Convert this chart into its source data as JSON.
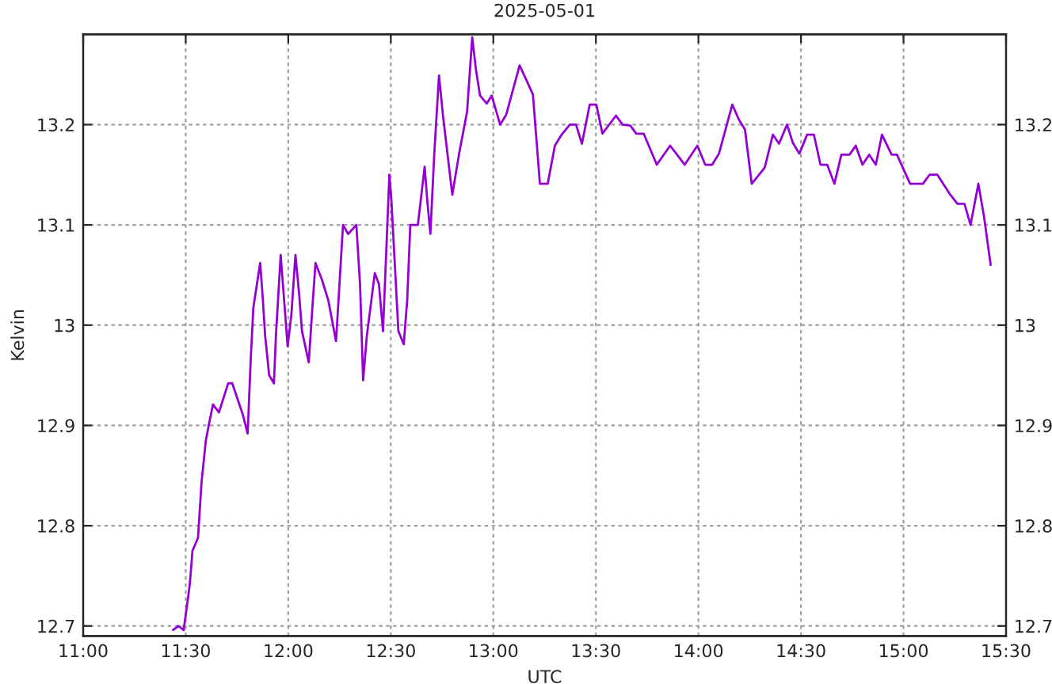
{
  "chart_data": {
    "type": "line",
    "title": "2025-05-01",
    "xlabel": "UTC",
    "ylabel": "Kelvin",
    "x": [
      11.438,
      11.465,
      11.49,
      11.508,
      11.52,
      11.533,
      11.56,
      11.577,
      11.598,
      11.615,
      11.633,
      11.662,
      11.707,
      11.727,
      11.778,
      11.802,
      11.817,
      11.83,
      11.863,
      11.875,
      11.887,
      11.907,
      11.93,
      11.94,
      11.963,
      11.997,
      12.015,
      12.035,
      12.053,
      12.067,
      12.1,
      12.12,
      12.133,
      12.163,
      12.195,
      12.233,
      12.267,
      12.292,
      12.332,
      12.35,
      12.365,
      12.383,
      12.422,
      12.442,
      12.462,
      12.493,
      12.503,
      12.518,
      12.537,
      12.563,
      12.58,
      12.595,
      12.632,
      12.665,
      12.678,
      12.693,
      12.712,
      12.735,
      12.755,
      12.8,
      12.833,
      12.872,
      12.897,
      12.915,
      12.935,
      12.968,
      12.992,
      13.033,
      13.063,
      13.128,
      13.162,
      13.193,
      13.227,
      13.265,
      13.3,
      13.333,
      13.373,
      13.403,
      13.432,
      13.47,
      13.502,
      13.532,
      13.598,
      13.63,
      13.668,
      13.697,
      13.733,
      13.797,
      13.862,
      13.892,
      13.933,
      13.995,
      14.033,
      14.067,
      14.1,
      14.165,
      14.197,
      14.227,
      14.26,
      14.323,
      14.363,
      14.393,
      14.432,
      14.46,
      14.492,
      14.53,
      14.563,
      14.595,
      14.628,
      14.663,
      14.697,
      14.737,
      14.767,
      14.8,
      14.833,
      14.865,
      14.895,
      14.942,
      14.968,
      15.032,
      15.095,
      15.127,
      15.165,
      15.225,
      15.263,
      15.297,
      15.327,
      15.365,
      15.392,
      15.425
    ],
    "series": [
      {
        "color": "#9400d3",
        "values": [
          12.696,
          12.7,
          12.696,
          12.723,
          12.742,
          12.775,
          12.788,
          12.843,
          12.885,
          12.903,
          12.921,
          12.913,
          12.942,
          12.942,
          12.911,
          12.892,
          12.966,
          13.018,
          13.062,
          13.029,
          12.99,
          12.95,
          12.942,
          12.99,
          13.07,
          12.979,
          13.01,
          13.07,
          13.031,
          12.994,
          12.963,
          13.025,
          13.062,
          13.046,
          13.025,
          12.984,
          13.1,
          13.091,
          13.1,
          13.041,
          12.945,
          12.989,
          13.052,
          13.041,
          12.994,
          13.15,
          13.124,
          13.067,
          12.994,
          12.981,
          13.025,
          13.1,
          13.1,
          13.158,
          13.124,
          13.091,
          13.171,
          13.249,
          13.208,
          13.13,
          13.171,
          13.213,
          13.287,
          13.255,
          13.229,
          13.221,
          13.229,
          13.2,
          13.21,
          13.259,
          13.244,
          13.23,
          13.141,
          13.141,
          13.179,
          13.19,
          13.2,
          13.2,
          13.181,
          13.22,
          13.22,
          13.191,
          13.209,
          13.2,
          13.199,
          13.191,
          13.191,
          13.16,
          13.179,
          13.171,
          13.16,
          13.179,
          13.16,
          13.16,
          13.171,
          13.22,
          13.205,
          13.195,
          13.141,
          13.157,
          13.19,
          13.181,
          13.2,
          13.182,
          13.171,
          13.19,
          13.19,
          13.16,
          13.16,
          13.141,
          13.17,
          13.17,
          13.179,
          13.16,
          13.17,
          13.16,
          13.19,
          13.17,
          13.17,
          13.141,
          13.141,
          13.15,
          13.15,
          13.131,
          13.121,
          13.121,
          13.1,
          13.141,
          13.109,
          13.06
        ]
      }
    ],
    "xlim": [
      11,
      15.5
    ],
    "xticks": [
      {
        "value": 11,
        "label": "11:00"
      },
      {
        "value": 11.5,
        "label": "11:30"
      },
      {
        "value": 12,
        "label": "12:00"
      },
      {
        "value": 12.5,
        "label": "12:30"
      },
      {
        "value": 13,
        "label": "13:00"
      },
      {
        "value": 13.5,
        "label": "13:30"
      },
      {
        "value": 14,
        "label": "14:00"
      },
      {
        "value": 14.5,
        "label": "14:30"
      },
      {
        "value": 15,
        "label": "15:00"
      },
      {
        "value": 15.5,
        "label": "15:30"
      }
    ],
    "ylim": [
      12.69,
      13.29
    ],
    "yticks": [
      12.7,
      12.8,
      12.9,
      13,
      13.1,
      13.2
    ],
    "y2lim": [
      12.69,
      13.29
    ],
    "y2ticks": [
      12.7,
      12.8,
      12.9,
      13,
      13.1,
      13.2
    ],
    "grid": true,
    "marker": "none",
    "line_style": "solid",
    "legend": false
  }
}
